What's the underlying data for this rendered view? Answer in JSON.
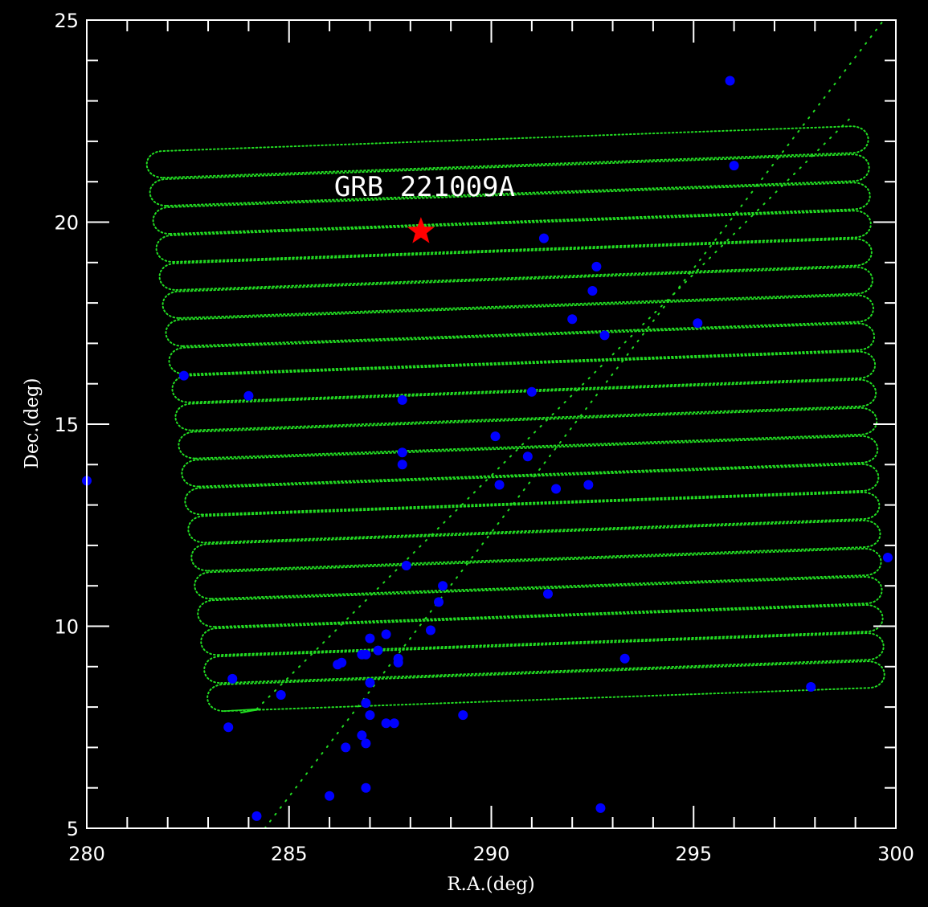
{
  "chart_data": {
    "type": "scatter",
    "xlabel": "R.A.(deg)",
    "ylabel": "Dec.(deg)",
    "xlim": [
      280,
      300
    ],
    "ylim": [
      5,
      25
    ],
    "x_major_ticks": [
      280,
      285,
      290,
      295,
      300
    ],
    "y_major_ticks": [
      5,
      10,
      15,
      20,
      25
    ],
    "x_minor_step": 1,
    "y_minor_step": 1,
    "grid": false,
    "colors": {
      "background": "#000000",
      "frame": "#ffffff",
      "scan_path": "#22dd22",
      "sources": "#0000ff",
      "grb": "#ff0000"
    },
    "annotations": [
      {
        "text": "GRB 221009A",
        "x": 288.35,
        "y": 20.65
      }
    ],
    "grb": {
      "name": "GRB 221009A",
      "ra": 288.26,
      "dec": 19.77,
      "marker": "star"
    },
    "scan_path": {
      "description_visible": false,
      "rows": 20,
      "dec_start_left": 7.9,
      "dec_end_left": 21.1,
      "ra_left_bottom": 283.4,
      "ra_left_top": 281.9,
      "ra_right_bottom": 299.3,
      "ra_right_top": 298.9,
      "slope": 0.036,
      "turn_radius": 0.33,
      "entry_line": [
        [
          283.8,
          7.86
        ],
        [
          284.3,
          7.95
        ]
      ],
      "diagonal_track_1": [
        [
          284.4,
          5.0
        ],
        [
          299.7,
          25.0
        ]
      ],
      "diagonal_track_2": [
        [
          284.2,
          7.95
        ],
        [
          298.9,
          22.6
        ]
      ]
    },
    "series": [
      {
        "name": "",
        "marker": "circle",
        "x": [
          295.9,
          296.0,
          291.3,
          292.6,
          292.5,
          292.0,
          292.8,
          295.1,
          282.4,
          284.0,
          287.8,
          291.0,
          290.1,
          287.8,
          287.8,
          290.9,
          290.2,
          291.6,
          292.4,
          280.0,
          287.9,
          299.8,
          288.8,
          288.7,
          291.4,
          288.5,
          287.4,
          287.0,
          286.9,
          287.2,
          286.8,
          287.7,
          287.7,
          286.3,
          286.2,
          287.0,
          293.3,
          283.6,
          284.8,
          286.9,
          297.9,
          287.0,
          289.3,
          287.4,
          287.6,
          283.5,
          286.8,
          286.9,
          286.4,
          286.9,
          286.0,
          284.2,
          292.7
        ],
        "y": [
          23.5,
          21.4,
          19.6,
          18.9,
          18.3,
          17.6,
          17.2,
          17.5,
          16.2,
          15.7,
          15.6,
          15.8,
          14.7,
          14.3,
          14.0,
          14.2,
          13.5,
          13.4,
          13.5,
          13.6,
          11.5,
          11.7,
          11.0,
          10.6,
          10.8,
          9.9,
          9.8,
          9.7,
          9.3,
          9.4,
          9.3,
          9.2,
          9.1,
          9.1,
          9.05,
          8.6,
          9.2,
          8.7,
          8.3,
          8.1,
          8.5,
          7.8,
          7.8,
          7.6,
          7.6,
          7.5,
          7.3,
          7.1,
          7.0,
          6.0,
          5.8,
          5.3,
          5.5
        ]
      }
    ]
  }
}
